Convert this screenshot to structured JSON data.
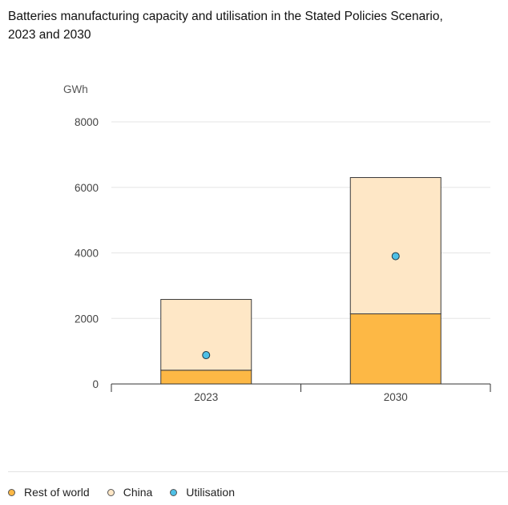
{
  "title": "Batteries manufacturing capacity and utilisation in the Stated Policies Scenario, 2023 and 2030",
  "chart_data": {
    "type": "bar",
    "stacked": true,
    "categories": [
      "2023",
      "2030"
    ],
    "series": [
      {
        "name": "Rest of world",
        "values": [
          420,
          2140
        ],
        "color": "#fdb845",
        "kind": "bar"
      },
      {
        "name": "China",
        "values": [
          2160,
          4160
        ],
        "color": "#fee7c6",
        "kind": "bar"
      },
      {
        "name": "Utilisation",
        "values": [
          880,
          3900
        ],
        "color": "#4ec0e6",
        "kind": "point"
      }
    ],
    "ylabel": "GWh",
    "ylim": [
      0,
      8000
    ],
    "yticks": [
      0,
      2000,
      4000,
      6000,
      8000
    ],
    "grid": true,
    "legend": "bottom-left"
  },
  "legend_items": [
    {
      "label": "Rest of world",
      "color": "#fdb845"
    },
    {
      "label": "China",
      "color": "#fee7c6"
    },
    {
      "label": "Utilisation",
      "color": "#4ec0e6"
    }
  ]
}
